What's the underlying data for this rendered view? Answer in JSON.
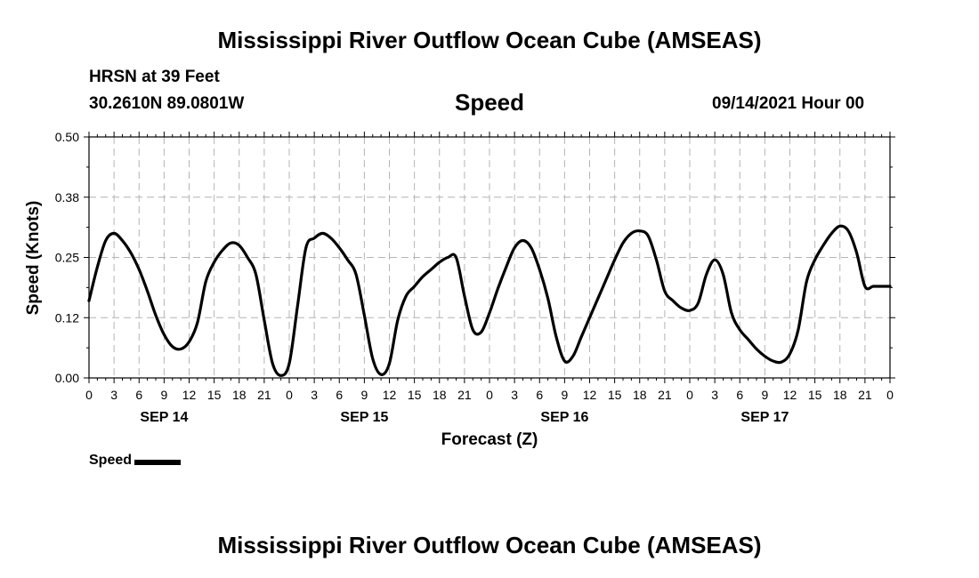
{
  "page": {
    "title_top": "Mississippi River Outflow Ocean Cube (AMSEAS)",
    "title_bottom": "Mississippi River Outflow Ocean Cube (AMSEAS)",
    "station": "HRSN at 39 Feet",
    "coords": "30.2610N  89.0801W",
    "datetime": "09/14/2021 Hour 00"
  },
  "chart_data": {
    "type": "line",
    "title": "Speed",
    "xlabel": "Forecast (Z)",
    "ylabel": "Speed (Knots)",
    "xlim": [
      0,
      96
    ],
    "ylim": [
      0,
      0.5
    ],
    "y_ticks": [
      0.0,
      0.125,
      0.25,
      0.375,
      0.5
    ],
    "y_tick_labels": [
      "0.00",
      "0.12",
      "0.25",
      "0.38",
      "0.50"
    ],
    "x_ticks": [
      0,
      3,
      6,
      9,
      12,
      15,
      18,
      21,
      24,
      27,
      30,
      33,
      36,
      39,
      42,
      45,
      48,
      51,
      54,
      57,
      60,
      63,
      66,
      69,
      72,
      75,
      78,
      81,
      84,
      87,
      90,
      93,
      96
    ],
    "x_tick_labels": [
      "0",
      "3",
      "6",
      "9",
      "12",
      "15",
      "18",
      "21",
      "0",
      "3",
      "6",
      "9",
      "12",
      "15",
      "18",
      "21",
      "0",
      "3",
      "6",
      "9",
      "12",
      "15",
      "18",
      "21",
      "0",
      "3",
      "6",
      "9",
      "12",
      "15",
      "18",
      "21",
      "0"
    ],
    "day_labels": [
      {
        "x": 9,
        "label": "SEP 14"
      },
      {
        "x": 33,
        "label": "SEP 15"
      },
      {
        "x": 57,
        "label": "SEP 16"
      },
      {
        "x": 81,
        "label": "SEP 17"
      }
    ],
    "grid": true,
    "legend": "bottom-left",
    "series": [
      {
        "name": "Speed",
        "color": "#000000",
        "x": [
          0,
          1,
          2,
          3,
          4,
          5,
          6,
          7,
          8,
          9,
          10,
          11,
          12,
          13,
          14,
          15,
          16,
          17,
          18,
          19,
          20,
          21,
          22,
          23,
          24,
          25,
          26,
          27,
          28,
          29,
          30,
          31,
          32,
          33,
          34,
          35,
          36,
          37,
          38,
          39,
          40,
          41,
          42,
          43,
          44,
          45,
          46,
          47,
          48,
          49,
          50,
          51,
          52,
          53,
          54,
          55,
          56,
          57,
          58,
          59,
          60,
          61,
          62,
          63,
          64,
          65,
          66,
          67,
          68,
          69,
          70,
          71,
          72,
          73,
          74,
          75,
          76,
          77,
          78,
          79,
          80,
          81,
          82,
          83,
          84,
          85,
          86,
          87,
          88,
          89,
          90,
          91,
          92,
          93,
          94,
          95,
          96
        ],
        "values": [
          0.16,
          0.23,
          0.285,
          0.3,
          0.285,
          0.26,
          0.225,
          0.18,
          0.13,
          0.09,
          0.065,
          0.06,
          0.075,
          0.115,
          0.2,
          0.24,
          0.265,
          0.28,
          0.275,
          0.25,
          0.215,
          0.12,
          0.03,
          0.005,
          0.03,
          0.15,
          0.27,
          0.29,
          0.3,
          0.29,
          0.27,
          0.245,
          0.215,
          0.13,
          0.04,
          0.007,
          0.03,
          0.12,
          0.17,
          0.19,
          0.21,
          0.225,
          0.24,
          0.25,
          0.25,
          0.17,
          0.1,
          0.095,
          0.135,
          0.185,
          0.23,
          0.27,
          0.285,
          0.27,
          0.225,
          0.165,
          0.085,
          0.035,
          0.045,
          0.085,
          0.125,
          0.165,
          0.205,
          0.245,
          0.28,
          0.3,
          0.305,
          0.295,
          0.245,
          0.18,
          0.16,
          0.145,
          0.14,
          0.155,
          0.215,
          0.245,
          0.215,
          0.135,
          0.1,
          0.08,
          0.06,
          0.045,
          0.035,
          0.033,
          0.05,
          0.1,
          0.2,
          0.245,
          0.275,
          0.3,
          0.315,
          0.305,
          0.26,
          0.19,
          0.19,
          0.19,
          0.19
        ]
      }
    ]
  }
}
